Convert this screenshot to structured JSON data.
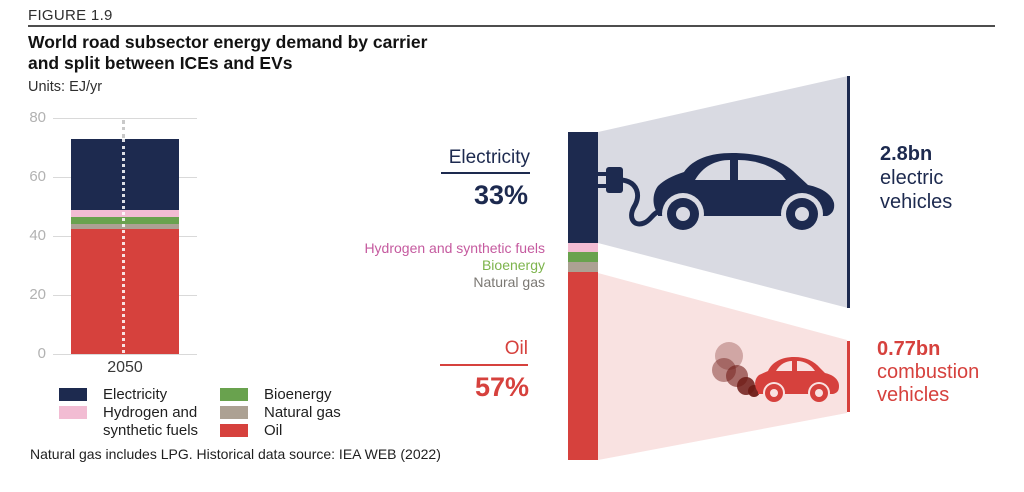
{
  "figure": {
    "label": "FIGURE 1.9",
    "title_line1": "World road subsector energy demand by carrier",
    "title_line2": "and split between ICEs and EVs",
    "units": "Units: EJ/yr"
  },
  "colors": {
    "navy": "#1d2a4f",
    "red": "#d6413d",
    "pink": "#f2bcd3",
    "green": "#69a24e",
    "taupe": "#aca193",
    "fan_gray": "#d9dae2",
    "fan_pink": "#f9e2e1",
    "label_magenta": "#c55a9f",
    "label_green": "#7db44c",
    "label_gray": "#7b7873",
    "axis_gray": "#b2b2b2",
    "grid_gray": "#d9d9d9",
    "smoke": "#6f1b16"
  },
  "chart_data": {
    "type": "bar",
    "stacked": true,
    "categories": [
      "2050"
    ],
    "series": [
      {
        "name": "Oil",
        "values": [
          42.5
        ],
        "color": "#d6413d"
      },
      {
        "name": "Natural gas",
        "values": [
          1.7
        ],
        "color": "#aca193"
      },
      {
        "name": "Bioenergy",
        "values": [
          2.2
        ],
        "color": "#69a24e"
      },
      {
        "name": "Hydrogen and synthetic fuels",
        "values": [
          2.4
        ],
        "color": "#f2bcd3"
      },
      {
        "name": "Electricity",
        "values": [
          24.2
        ],
        "color": "#1d2a4f"
      }
    ],
    "title": "World road subsector energy demand by carrier and split between ICEs and EVs",
    "xlabel": "",
    "ylabel": "EJ/yr",
    "ylim": [
      0,
      80
    ],
    "yticks": [
      0,
      20,
      40,
      60,
      80
    ],
    "grid": true,
    "legend_position": "bottom"
  },
  "legend": {
    "col1": [
      {
        "label": "Electricity",
        "color": "#1d2a4f"
      },
      {
        "label": "Hydrogen and synthetic fuels",
        "color": "#f2bcd3"
      }
    ],
    "col2": [
      {
        "label": "Bioenergy",
        "color": "#69a24e"
      },
      {
        "label": "Natural gas",
        "color": "#aca193"
      },
      {
        "label": "Oil",
        "color": "#d6413d"
      }
    ]
  },
  "footnote": "Natural gas includes LPG. Historical data source: IEA WEB (2022)",
  "split": {
    "electricity_label": "Electricity",
    "electricity_pct": "33%",
    "mid_labels": [
      "Hydrogen and synthetic fuels",
      "Bioenergy",
      "Natural gas"
    ],
    "oil_label": "Oil",
    "oil_pct": "57%",
    "ev_count": "2.8bn",
    "ev_line1": "electric",
    "ev_line2": "vehicles",
    "ice_count": "0.77bn",
    "ice_line1": "combustion",
    "ice_line2": "vehicles"
  }
}
